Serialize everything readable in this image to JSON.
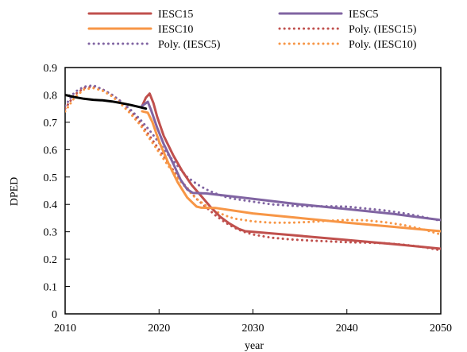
{
  "chart_data": {
    "type": "line",
    "xlabel": "year",
    "ylabel": "DPED",
    "xlim": [
      2010,
      2050
    ],
    "ylim": [
      0,
      0.9
    ],
    "x_ticks": [
      "2010",
      "2020",
      "2030",
      "2040",
      "2050"
    ],
    "y_ticks": [
      "0",
      "0.1",
      "0.2",
      "0.3",
      "0.4",
      "0.5",
      "0.6",
      "0.7",
      "0.8",
      "0.9"
    ],
    "legend_position": "top",
    "grid": false,
    "series": [
      {
        "name": "IESC15",
        "style": "solid",
        "color": "#c0504d",
        "points": [
          [
            2018.2,
            0.76
          ],
          [
            2018.6,
            0.79
          ],
          [
            2019.0,
            0.805
          ],
          [
            2019.4,
            0.77
          ],
          [
            2019.8,
            0.72
          ],
          [
            2020.5,
            0.65
          ],
          [
            2021.5,
            0.58
          ],
          [
            2022.5,
            0.52
          ],
          [
            2023.5,
            0.47
          ],
          [
            2024.5,
            0.43
          ],
          [
            2025.5,
            0.39
          ],
          [
            2026.5,
            0.355
          ],
          [
            2027.5,
            0.33
          ],
          [
            2028.5,
            0.31
          ],
          [
            2029.2,
            0.302
          ],
          [
            2030,
            0.3
          ],
          [
            2035,
            0.285
          ],
          [
            2040,
            0.27
          ],
          [
            2045,
            0.255
          ],
          [
            2050,
            0.238
          ]
        ]
      },
      {
        "name": "IESC5",
        "style": "solid",
        "color": "#8064a2",
        "points": [
          [
            2018.2,
            0.76
          ],
          [
            2018.8,
            0.775
          ],
          [
            2019.2,
            0.74
          ],
          [
            2019.8,
            0.68
          ],
          [
            2020.5,
            0.62
          ],
          [
            2021.5,
            0.55
          ],
          [
            2022.3,
            0.49
          ],
          [
            2023.0,
            0.455
          ],
          [
            2023.6,
            0.442
          ],
          [
            2025,
            0.44
          ],
          [
            2030,
            0.42
          ],
          [
            2035,
            0.4
          ],
          [
            2040,
            0.383
          ],
          [
            2045,
            0.365
          ],
          [
            2050,
            0.343
          ]
        ]
      },
      {
        "name": "IESC10",
        "style": "solid",
        "color": "#f79646",
        "points": [
          [
            2018.2,
            0.74
          ],
          [
            2018.8,
            0.735
          ],
          [
            2019.3,
            0.7
          ],
          [
            2020,
            0.63
          ],
          [
            2021,
            0.55
          ],
          [
            2022,
            0.48
          ],
          [
            2023,
            0.425
          ],
          [
            2024,
            0.392
          ],
          [
            2024.5,
            0.388
          ],
          [
            2026,
            0.387
          ],
          [
            2030,
            0.367
          ],
          [
            2035,
            0.35
          ],
          [
            2040,
            0.333
          ],
          [
            2045,
            0.318
          ],
          [
            2050,
            0.302
          ]
        ]
      },
      {
        "name": "Poly. (IESC15)",
        "style": "dotted",
        "color": "#c0504d",
        "points": [
          [
            2010,
            0.75
          ],
          [
            2011,
            0.8
          ],
          [
            2012,
            0.825
          ],
          [
            2013,
            0.83
          ],
          [
            2014,
            0.82
          ],
          [
            2015,
            0.8
          ],
          [
            2016,
            0.775
          ],
          [
            2017,
            0.74
          ],
          [
            2018,
            0.7
          ],
          [
            2019,
            0.65
          ],
          [
            2020,
            0.6
          ],
          [
            2021,
            0.55
          ],
          [
            2022,
            0.5
          ],
          [
            2023,
            0.46
          ],
          [
            2024,
            0.42
          ],
          [
            2025,
            0.39
          ],
          [
            2026,
            0.36
          ],
          [
            2027,
            0.335
          ],
          [
            2028,
            0.315
          ],
          [
            2029,
            0.3
          ],
          [
            2030,
            0.29
          ],
          [
            2032,
            0.278
          ],
          [
            2034,
            0.272
          ],
          [
            2036,
            0.268
          ],
          [
            2038,
            0.265
          ],
          [
            2040,
            0.262
          ],
          [
            2042,
            0.26
          ],
          [
            2044,
            0.258
          ],
          [
            2046,
            0.253
          ],
          [
            2048,
            0.245
          ],
          [
            2050,
            0.232
          ]
        ]
      },
      {
        "name": "Poly. (IESC5)",
        "style": "dotted",
        "color": "#8064a2",
        "points": [
          [
            2010,
            0.76
          ],
          [
            2011,
            0.81
          ],
          [
            2012,
            0.83
          ],
          [
            2013,
            0.835
          ],
          [
            2014,
            0.82
          ],
          [
            2015,
            0.8
          ],
          [
            2016,
            0.775
          ],
          [
            2017,
            0.745
          ],
          [
            2018,
            0.71
          ],
          [
            2019,
            0.67
          ],
          [
            2020,
            0.625
          ],
          [
            2021,
            0.58
          ],
          [
            2022,
            0.54
          ],
          [
            2023,
            0.5
          ],
          [
            2024,
            0.475
          ],
          [
            2025,
            0.455
          ],
          [
            2026,
            0.44
          ],
          [
            2027,
            0.428
          ],
          [
            2028,
            0.42
          ],
          [
            2030,
            0.41
          ],
          [
            2032,
            0.4
          ],
          [
            2034,
            0.395
          ],
          [
            2036,
            0.393
          ],
          [
            2038,
            0.393
          ],
          [
            2040,
            0.392
          ],
          [
            2042,
            0.385
          ],
          [
            2044,
            0.378
          ],
          [
            2046,
            0.368
          ],
          [
            2048,
            0.355
          ],
          [
            2050,
            0.34
          ]
        ]
      },
      {
        "name": "Poly. (IESC10)",
        "style": "dotted",
        "color": "#f79646",
        "points": [
          [
            2010,
            0.74
          ],
          [
            2011,
            0.79
          ],
          [
            2012,
            0.82
          ],
          [
            2013,
            0.825
          ],
          [
            2014,
            0.815
          ],
          [
            2015,
            0.795
          ],
          [
            2016,
            0.765
          ],
          [
            2017,
            0.73
          ],
          [
            2018,
            0.69
          ],
          [
            2019,
            0.64
          ],
          [
            2020,
            0.59
          ],
          [
            2021,
            0.54
          ],
          [
            2022,
            0.495
          ],
          [
            2023,
            0.455
          ],
          [
            2024,
            0.42
          ],
          [
            2025,
            0.395
          ],
          [
            2026,
            0.375
          ],
          [
            2027,
            0.36
          ],
          [
            2028,
            0.348
          ],
          [
            2030,
            0.338
          ],
          [
            2032,
            0.333
          ],
          [
            2034,
            0.333
          ],
          [
            2036,
            0.336
          ],
          [
            2038,
            0.34
          ],
          [
            2040,
            0.343
          ],
          [
            2042,
            0.342
          ],
          [
            2044,
            0.335
          ],
          [
            2046,
            0.325
          ],
          [
            2048,
            0.31
          ],
          [
            2050,
            0.29
          ]
        ]
      },
      {
        "name": "",
        "style": "solid",
        "color": "#000000",
        "points": [
          [
            2010,
            0.8
          ],
          [
            2011,
            0.792
          ],
          [
            2012,
            0.786
          ],
          [
            2013,
            0.782
          ],
          [
            2014,
            0.78
          ],
          [
            2015,
            0.776
          ],
          [
            2016,
            0.77
          ],
          [
            2017,
            0.763
          ],
          [
            2018,
            0.755
          ],
          [
            2018.6,
            0.75
          ]
        ]
      }
    ],
    "legend": [
      {
        "label": "IESC15",
        "style": "solid",
        "color": "#c0504d"
      },
      {
        "label": "IESC5",
        "style": "solid",
        "color": "#8064a2"
      },
      {
        "label": "IESC10",
        "style": "solid",
        "color": "#f79646"
      },
      {
        "label": "Poly. (IESC15)",
        "style": "dotted",
        "color": "#c0504d"
      },
      {
        "label": "Poly. (IESC5)",
        "style": "dotted",
        "color": "#8064a2"
      },
      {
        "label": "Poly. (IESC10)",
        "style": "dotted",
        "color": "#f79646"
      }
    ]
  }
}
